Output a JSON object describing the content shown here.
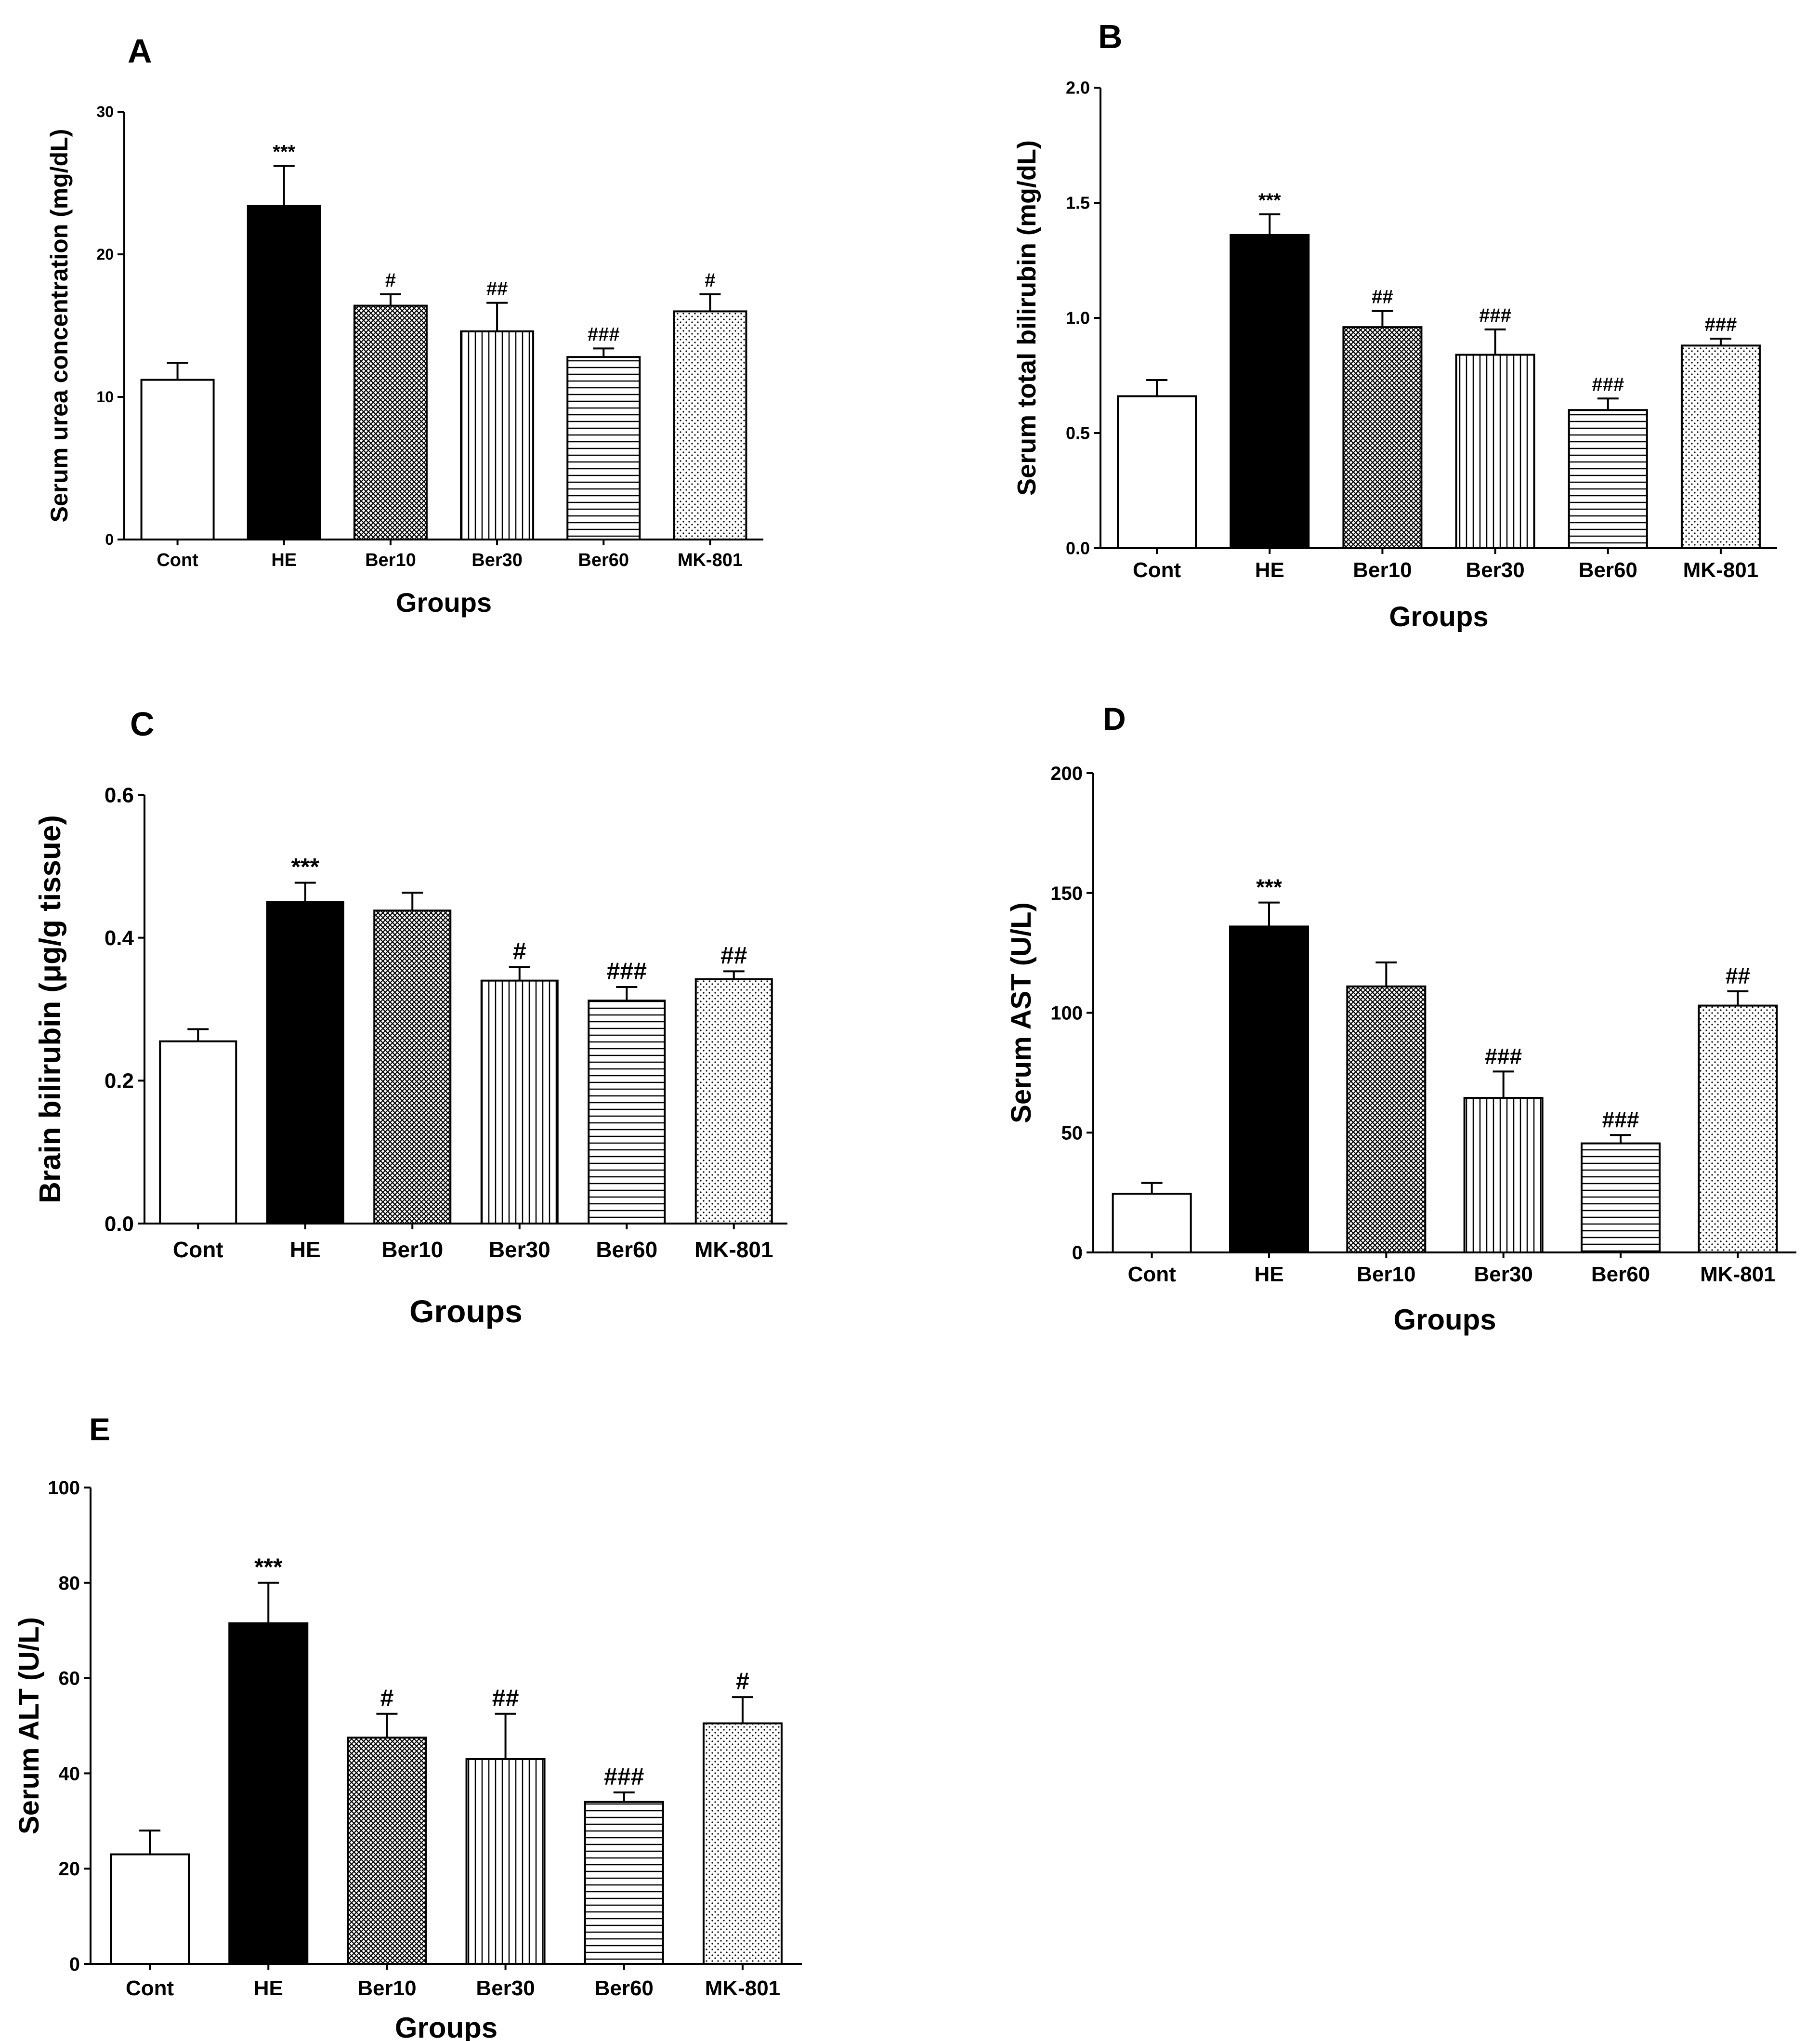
{
  "chart_data": [
    {
      "panel": "A",
      "type": "bar",
      "categories": [
        "Cont",
        "HE",
        "Ber10",
        "Ber30",
        "Ber60",
        "MK-801"
      ],
      "values": [
        11.2,
        23.4,
        16.4,
        14.6,
        12.8,
        16.0
      ],
      "errors": [
        1.2,
        2.8,
        0.8,
        2.0,
        0.6,
        1.2
      ],
      "significance": [
        "",
        "***",
        "#",
        "##",
        "###",
        "#"
      ],
      "xlabel": "Groups",
      "ylabel": "Serum urea concentration (mg/dL)",
      "ylim": [
        0,
        30
      ],
      "yticks": [
        0,
        10,
        20,
        30
      ],
      "ytick_labels": [
        "0",
        "10",
        "20",
        "30"
      ]
    },
    {
      "panel": "B",
      "type": "bar",
      "categories": [
        "Cont",
        "HE",
        "Ber10",
        "Ber30",
        "Ber60",
        "MK-801"
      ],
      "values": [
        0.66,
        1.36,
        0.96,
        0.84,
        0.6,
        0.88
      ],
      "errors": [
        0.07,
        0.09,
        0.07,
        0.11,
        0.05,
        0.03
      ],
      "significance": [
        "",
        "***",
        "##",
        "###",
        "###",
        "###"
      ],
      "xlabel": "Groups",
      "ylabel": "Serum total bilirubin (mg/dL)",
      "ylim": [
        0,
        2.0
      ],
      "yticks": [
        0,
        0.5,
        1.0,
        1.5,
        2.0
      ],
      "ytick_labels": [
        "0.0",
        "0.5",
        "1.0",
        "1.5",
        "2.0"
      ]
    },
    {
      "panel": "C",
      "type": "bar",
      "categories": [
        "Cont",
        "HE",
        "Ber10",
        "Ber30",
        "Ber60",
        "MK-801"
      ],
      "values": [
        0.255,
        0.45,
        0.438,
        0.34,
        0.312,
        0.342
      ],
      "errors": [
        0.017,
        0.027,
        0.025,
        0.019,
        0.019,
        0.011
      ],
      "significance": [
        "",
        "***",
        "",
        "#",
        "###",
        "##"
      ],
      "xlabel": "Groups",
      "ylabel": "Brain bilirubin (μg/g tissue)",
      "ylim": [
        0,
        0.6
      ],
      "yticks": [
        0,
        0.2,
        0.4,
        0.6
      ],
      "ytick_labels": [
        "0.0",
        "0.2",
        "0.4",
        "0.6"
      ]
    },
    {
      "panel": "D",
      "type": "bar",
      "categories": [
        "Cont",
        "HE",
        "Ber10",
        "Ber30",
        "Ber60",
        "MK-801"
      ],
      "values": [
        24.5,
        136,
        111,
        64.5,
        45.5,
        103
      ],
      "errors": [
        4.5,
        10,
        10,
        11,
        3.5,
        6
      ],
      "significance": [
        "",
        "***",
        "",
        "###",
        "###",
        "##"
      ],
      "xlabel": "Groups",
      "ylabel": "Serum AST (U/L)",
      "ylim": [
        0,
        200
      ],
      "yticks": [
        0,
        50,
        100,
        150,
        200
      ],
      "ytick_labels": [
        "0",
        "50",
        "100",
        "150",
        "200"
      ]
    },
    {
      "panel": "E",
      "type": "bar",
      "categories": [
        "Cont",
        "HE",
        "Ber10",
        "Ber30",
        "Ber60",
        "MK-801"
      ],
      "values": [
        23,
        71.5,
        47.5,
        43,
        34,
        50.5
      ],
      "errors": [
        5,
        8.5,
        5,
        9.5,
        2,
        5.5
      ],
      "significance": [
        "",
        "***",
        "#",
        "##",
        "###",
        "#"
      ],
      "xlabel": "Groups",
      "ylabel": "Serum ALT (U/L)",
      "ylim": [
        0,
        100
      ],
      "yticks": [
        0,
        20,
        40,
        60,
        80,
        100
      ],
      "ytick_labels": [
        "0",
        "20",
        "40",
        "60",
        "80",
        "100"
      ]
    }
  ]
}
